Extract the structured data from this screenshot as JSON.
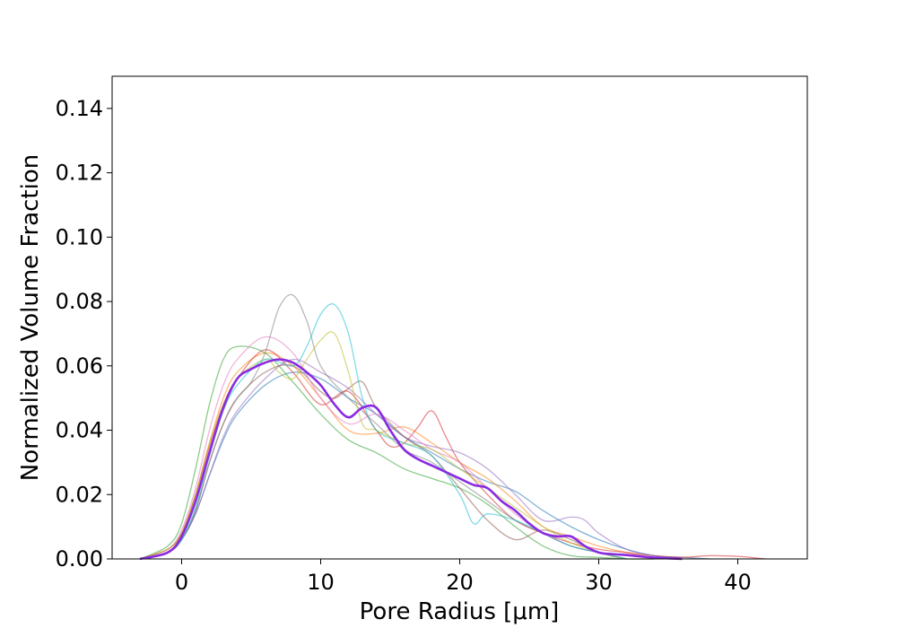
{
  "chart_data": {
    "type": "line",
    "title": "",
    "xlabel": "Pore Radius [μm]",
    "ylabel": "Normalized Volume Fraction",
    "xlim": [
      -5,
      45
    ],
    "ylim": [
      0,
      0.15
    ],
    "xticks": [
      0,
      10,
      20,
      30,
      40
    ],
    "yticks": [
      0.0,
      0.02,
      0.04,
      0.06,
      0.08,
      0.1,
      0.12,
      0.14
    ],
    "ytick_labels": [
      "0.00",
      "0.02",
      "0.04",
      "0.06",
      "0.08",
      "0.10",
      "0.12",
      "0.14"
    ],
    "grid": false,
    "series": [
      {
        "color": "#1f77b4",
        "opacity": 0.55,
        "x": [
          -3,
          -1,
          0,
          1,
          2,
          3,
          4,
          6,
          8,
          10,
          12,
          14,
          16,
          18,
          20,
          22,
          24,
          26,
          28,
          30,
          32,
          34,
          36,
          38
        ],
        "y": [
          0,
          0.002,
          0.006,
          0.014,
          0.026,
          0.037,
          0.045,
          0.054,
          0.058,
          0.056,
          0.05,
          0.045,
          0.038,
          0.033,
          0.028,
          0.024,
          0.021,
          0.015,
          0.01,
          0.006,
          0.003,
          0.001,
          0.0005,
          0
        ]
      },
      {
        "color": "#ff7f0e",
        "opacity": 0.55,
        "x": [
          -3,
          -1,
          0,
          1,
          2,
          3,
          4,
          6,
          8,
          10,
          12,
          14,
          16,
          18,
          20,
          22,
          24,
          26,
          28,
          30,
          32,
          34,
          36
        ],
        "y": [
          0,
          0.003,
          0.008,
          0.02,
          0.036,
          0.05,
          0.058,
          0.064,
          0.06,
          0.05,
          0.04,
          0.039,
          0.041,
          0.036,
          0.03,
          0.025,
          0.018,
          0.01,
          0.007,
          0.004,
          0.002,
          0.0005,
          0
        ]
      },
      {
        "color": "#2ca02c",
        "opacity": 0.55,
        "x": [
          -3,
          -1,
          0,
          1,
          2,
          3,
          4,
          6,
          8,
          10,
          12,
          14,
          16,
          18,
          20,
          22,
          24,
          26,
          28,
          30,
          32,
          34
        ],
        "y": [
          0,
          0.004,
          0.011,
          0.028,
          0.048,
          0.062,
          0.066,
          0.064,
          0.055,
          0.045,
          0.037,
          0.033,
          0.028,
          0.025,
          0.022,
          0.017,
          0.01,
          0.004,
          0.001,
          0.0005,
          0,
          0
        ]
      },
      {
        "color": "#d62728",
        "opacity": 0.55,
        "x": [
          -3,
          -1,
          0,
          1,
          2,
          3,
          4,
          6,
          8,
          10,
          12,
          14,
          15,
          16,
          17,
          18,
          19,
          20,
          22,
          24,
          26,
          28,
          30,
          32,
          34,
          36,
          38,
          40,
          42
        ],
        "y": [
          0,
          0.003,
          0.008,
          0.02,
          0.035,
          0.048,
          0.056,
          0.065,
          0.058,
          0.048,
          0.052,
          0.04,
          0.035,
          0.036,
          0.041,
          0.046,
          0.038,
          0.03,
          0.02,
          0.012,
          0.008,
          0.005,
          0.003,
          0.002,
          0.001,
          0.0005,
          0.001,
          0.0008,
          0
        ]
      },
      {
        "color": "#9467bd",
        "opacity": 0.55,
        "x": [
          -3,
          -1,
          0,
          1,
          2,
          3,
          4,
          6,
          8,
          10,
          12,
          14,
          16,
          18,
          20,
          22,
          24,
          26,
          28,
          29,
          30,
          32,
          34,
          36
        ],
        "y": [
          0,
          0.002,
          0.006,
          0.014,
          0.026,
          0.038,
          0.046,
          0.056,
          0.062,
          0.058,
          0.053,
          0.045,
          0.038,
          0.035,
          0.033,
          0.028,
          0.02,
          0.012,
          0.013,
          0.012,
          0.008,
          0.003,
          0.001,
          0
        ]
      },
      {
        "color": "#8c564b",
        "opacity": 0.55,
        "x": [
          -3,
          -1,
          0,
          1,
          2,
          3,
          4,
          6,
          8,
          10,
          11,
          12,
          13,
          14,
          16,
          18,
          20,
          22,
          24,
          26,
          28,
          30,
          32
        ],
        "y": [
          0,
          0.002,
          0.006,
          0.015,
          0.03,
          0.042,
          0.05,
          0.058,
          0.06,
          0.052,
          0.05,
          0.053,
          0.055,
          0.047,
          0.038,
          0.032,
          0.022,
          0.012,
          0.006,
          0.009,
          0.006,
          0.002,
          0
        ]
      },
      {
        "color": "#e377c2",
        "opacity": 0.55,
        "x": [
          -3,
          -1,
          0,
          1,
          2,
          3,
          4,
          6,
          8,
          10,
          12,
          14,
          16,
          18,
          20,
          22,
          24,
          26,
          28,
          30,
          32,
          34
        ],
        "y": [
          0,
          0.003,
          0.009,
          0.022,
          0.04,
          0.054,
          0.062,
          0.069,
          0.064,
          0.05,
          0.042,
          0.045,
          0.04,
          0.034,
          0.03,
          0.022,
          0.014,
          0.008,
          0.004,
          0.002,
          0.001,
          0
        ]
      },
      {
        "color": "#7f7f7f",
        "opacity": 0.55,
        "x": [
          -3,
          -1,
          0,
          1,
          2,
          3,
          4,
          5,
          6,
          7,
          8,
          9,
          10,
          12,
          14,
          16,
          18,
          20,
          22,
          24,
          26,
          28,
          30,
          32
        ],
        "y": [
          0,
          0.002,
          0.006,
          0.015,
          0.03,
          0.042,
          0.05,
          0.055,
          0.064,
          0.078,
          0.082,
          0.074,
          0.06,
          0.05,
          0.042,
          0.034,
          0.03,
          0.024,
          0.018,
          0.012,
          0.008,
          0.004,
          0.002,
          0
        ]
      },
      {
        "color": "#bcbd22",
        "opacity": 0.55,
        "x": [
          -3,
          -1,
          0,
          1,
          2,
          3,
          4,
          6,
          7,
          8,
          9,
          10,
          11,
          12,
          13,
          14,
          16,
          18,
          20,
          22,
          24,
          26,
          28,
          30,
          32
        ],
        "y": [
          0,
          0.003,
          0.008,
          0.02,
          0.036,
          0.048,
          0.056,
          0.062,
          0.058,
          0.056,
          0.062,
          0.068,
          0.07,
          0.058,
          0.042,
          0.04,
          0.036,
          0.034,
          0.028,
          0.022,
          0.016,
          0.01,
          0.005,
          0.002,
          0
        ]
      },
      {
        "color": "#17becf",
        "opacity": 0.55,
        "x": [
          -3,
          -1,
          0,
          1,
          2,
          3,
          4,
          6,
          8,
          9,
          10,
          11,
          12,
          13,
          14,
          16,
          18,
          20,
          21,
          22,
          24,
          26,
          28,
          30,
          32
        ],
        "y": [
          0,
          0.002,
          0.006,
          0.016,
          0.032,
          0.046,
          0.054,
          0.062,
          0.06,
          0.066,
          0.076,
          0.079,
          0.07,
          0.05,
          0.04,
          0.036,
          0.032,
          0.02,
          0.011,
          0.014,
          0.012,
          0.008,
          0.004,
          0.002,
          0
        ]
      },
      {
        "color": "#8a2be2",
        "opacity": 1,
        "mean": true,
        "x": [
          -3,
          -1,
          0,
          1,
          2,
          3,
          4,
          5,
          6,
          7,
          8,
          9,
          10,
          11,
          12,
          13,
          14,
          15,
          16,
          17,
          18,
          19,
          20,
          21,
          22,
          23,
          24,
          25,
          26,
          27,
          28,
          29,
          30,
          31,
          32,
          33,
          34,
          35,
          36
        ],
        "y": [
          0,
          0.002,
          0.007,
          0.018,
          0.033,
          0.047,
          0.056,
          0.059,
          0.061,
          0.062,
          0.061,
          0.058,
          0.054,
          0.048,
          0.044,
          0.047,
          0.047,
          0.04,
          0.034,
          0.031,
          0.029,
          0.027,
          0.025,
          0.023,
          0.022,
          0.018,
          0.015,
          0.011,
          0.008,
          0.007,
          0.007,
          0.004,
          0.002,
          0.0015,
          0.0012,
          0.0008,
          0.0004,
          0.0002,
          0
        ]
      }
    ]
  }
}
